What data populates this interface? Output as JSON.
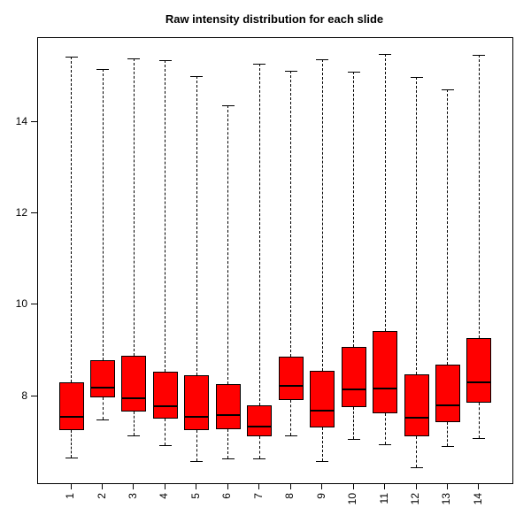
{
  "title": "Raw intensity distribution for each slide",
  "colors": {
    "box_fill": "#FF0000",
    "box_border": "#000000",
    "median": "#000000",
    "background": "#FFFFFF",
    "axis": "#000000"
  },
  "chart_data": {
    "type": "boxplot",
    "title": "Raw intensity distribution for each slide",
    "xlabel": "",
    "ylabel": "",
    "categories": [
      "1",
      "2",
      "3",
      "4",
      "5",
      "6",
      "7",
      "8",
      "9",
      "10",
      "11",
      "12",
      "13",
      "14"
    ],
    "y_ticks": [
      8,
      10,
      12,
      14
    ],
    "ylim": [
      6.09,
      15.85
    ],
    "xlim": [
      -0.06,
      15.06
    ],
    "grid": false,
    "legend": false,
    "box_width_units": 0.8,
    "stats_order": [
      "whisker_low",
      "q1",
      "median",
      "q3",
      "whisker_high"
    ],
    "series": [
      {
        "label": "1",
        "whisker_low": 6.65,
        "q1": 7.25,
        "median": 7.55,
        "q3": 8.3,
        "whisker_high": 15.45
      },
      {
        "label": "2",
        "whisker_low": 7.48,
        "q1": 7.97,
        "median": 8.18,
        "q3": 8.78,
        "whisker_high": 15.17
      },
      {
        "label": "3",
        "whisker_low": 7.14,
        "q1": 7.66,
        "median": 7.96,
        "q3": 8.88,
        "whisker_high": 15.41
      },
      {
        "label": "4",
        "whisker_low": 6.92,
        "q1": 7.51,
        "median": 7.77,
        "q3": 8.53,
        "whisker_high": 15.37
      },
      {
        "label": "5",
        "whisker_low": 6.57,
        "q1": 7.25,
        "median": 7.55,
        "q3": 8.46,
        "whisker_high": 15.02
      },
      {
        "label": "6",
        "whisker_low": 6.63,
        "q1": 7.27,
        "median": 7.59,
        "q3": 8.26,
        "whisker_high": 14.37
      },
      {
        "label": "7",
        "whisker_low": 6.63,
        "q1": 7.12,
        "median": 7.34,
        "q3": 7.79,
        "whisker_high": 15.28
      },
      {
        "label": "8",
        "whisker_low": 7.14,
        "q1": 7.92,
        "median": 8.23,
        "q3": 8.86,
        "whisker_high": 15.13
      },
      {
        "label": "9",
        "whisker_low": 6.57,
        "q1": 7.32,
        "median": 7.68,
        "q3": 8.55,
        "whisker_high": 15.38
      },
      {
        "label": "10",
        "whisker_low": 7.06,
        "q1": 7.75,
        "median": 8.14,
        "q3": 9.07,
        "whisker_high": 15.12
      },
      {
        "label": "11",
        "whisker_low": 6.95,
        "q1": 7.63,
        "median": 8.17,
        "q3": 9.43,
        "whisker_high": 15.5
      },
      {
        "label": "12",
        "whisker_low": 6.44,
        "q1": 7.12,
        "median": 7.53,
        "q3": 8.47,
        "whisker_high": 14.99
      },
      {
        "label": "13",
        "whisker_low": 6.9,
        "q1": 7.43,
        "median": 7.8,
        "q3": 8.69,
        "whisker_high": 14.73
      },
      {
        "label": "14",
        "whisker_low": 7.07,
        "q1": 7.85,
        "median": 8.31,
        "q3": 9.28,
        "whisker_high": 15.48
      }
    ]
  }
}
